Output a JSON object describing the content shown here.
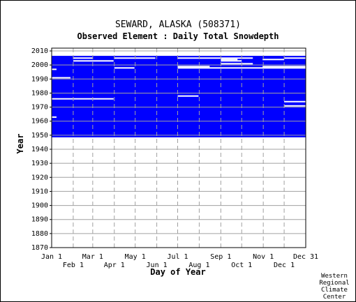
{
  "chart": {
    "title": "SEWARD, ALASKA   (508371)",
    "subtitle": "Observed Element : Daily Total Snowdepth",
    "xlabel": "Day of Year",
    "ylabel": "Year",
    "credit": [
      "Western",
      "Regional",
      "Climate",
      "Center"
    ]
  },
  "chart_data": {
    "type": "heatmap",
    "title": "SEWARD, ALASKA   (508371)",
    "subtitle": "Observed Element : Daily Total Snowdepth",
    "xlabel": "Day of Year",
    "ylabel": "Year",
    "x_ticks_top": [
      "Jan 1",
      "Mar 1",
      "May 1",
      "Jul 1",
      "Sep 1",
      "Nov 1",
      "Dec 31"
    ],
    "x_ticks_bottom": [
      "Feb 1",
      "Apr 1",
      "Jun 1",
      "Aug 1",
      "Oct 1",
      "Dec 1"
    ],
    "y_ticks": [
      1870,
      1880,
      1890,
      1900,
      1910,
      1920,
      1930,
      1940,
      1950,
      1960,
      1970,
      1980,
      1990,
      2000,
      2010
    ],
    "ylim": [
      1870,
      2012
    ],
    "xlim": [
      1,
      366
    ],
    "grid": true,
    "data_color": "#0000ff",
    "background_color": "#ffffff",
    "record_period": {
      "start_year": 1949,
      "end_year": 2006
    },
    "gaps": [
      {
        "year": 1963,
        "from_day": 1,
        "to_day": 8
      },
      {
        "year": 1976,
        "from_day": 1,
        "to_day": 90
      },
      {
        "year": 1978,
        "from_day": 182,
        "to_day": 212
      },
      {
        "year": 1971,
        "from_day": 335,
        "to_day": 366
      },
      {
        "year": 1974,
        "from_day": 335,
        "to_day": 366
      },
      {
        "year": 1991,
        "from_day": 1,
        "to_day": 28
      },
      {
        "year": 1997,
        "from_day": 1,
        "to_day": 8
      },
      {
        "year": 1998,
        "from_day": 91,
        "to_day": 120
      },
      {
        "year": 1998,
        "from_day": 182,
        "to_day": 366
      },
      {
        "year": 1999,
        "from_day": 182,
        "to_day": 228
      },
      {
        "year": 1999,
        "from_day": 304,
        "to_day": 366
      },
      {
        "year": 2001,
        "from_day": 244,
        "to_day": 290
      },
      {
        "year": 2003,
        "from_day": 32,
        "to_day": 90
      },
      {
        "year": 2003,
        "from_day": 244,
        "to_day": 274
      },
      {
        "year": 2004,
        "from_day": 244,
        "to_day": 268
      },
      {
        "year": 2004,
        "from_day": 304,
        "to_day": 335
      },
      {
        "year": 2005,
        "from_day": 32,
        "to_day": 60
      },
      {
        "year": 2005,
        "from_day": 91,
        "to_day": 150
      },
      {
        "year": 2005,
        "from_day": 182,
        "to_day": 290
      },
      {
        "year": 2005,
        "from_day": 335,
        "to_day": 366
      }
    ]
  }
}
